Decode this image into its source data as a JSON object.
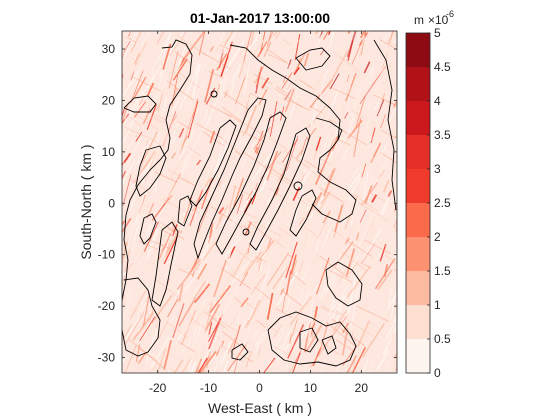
{
  "chart_data": {
    "type": "heatmap",
    "title": "01-Jan-2017 13:00:00",
    "xlabel": "West-East ( km )",
    "ylabel": "South-North ( km )",
    "xlim": [
      -27,
      27
    ],
    "ylim": [
      -33,
      33.5
    ],
    "xticks": [
      -20,
      -10,
      0,
      10,
      20
    ],
    "yticks": [
      -30,
      -20,
      -10,
      0,
      10,
      20,
      30
    ],
    "grid": false,
    "colorbar": {
      "unit": "m",
      "scale_exponent": "-6",
      "scale_label": "×10",
      "range": [
        0,
        5
      ],
      "ticks": [
        "0",
        "0.5",
        "1",
        "1.5",
        "2",
        "2.5",
        "3",
        "3.5",
        "4",
        "4.5",
        "5"
      ],
      "levels": [
        0,
        0.5,
        1,
        1.5,
        2,
        2.5,
        3,
        3.5,
        4,
        4.5,
        5
      ],
      "colors": [
        "#fff5f0",
        "#fee0d2",
        "#fcbba1",
        "#fc9272",
        "#fb6a4a",
        "#ef3b2c",
        "#e32f27",
        "#cb181d",
        "#b11218",
        "#8e0b14"
      ]
    },
    "features": {
      "streaks_orientation": "southwest-northeast",
      "contour_color": "#000000",
      "high_values_region": "upper right (x 5..20, y 15..33)"
    }
  }
}
